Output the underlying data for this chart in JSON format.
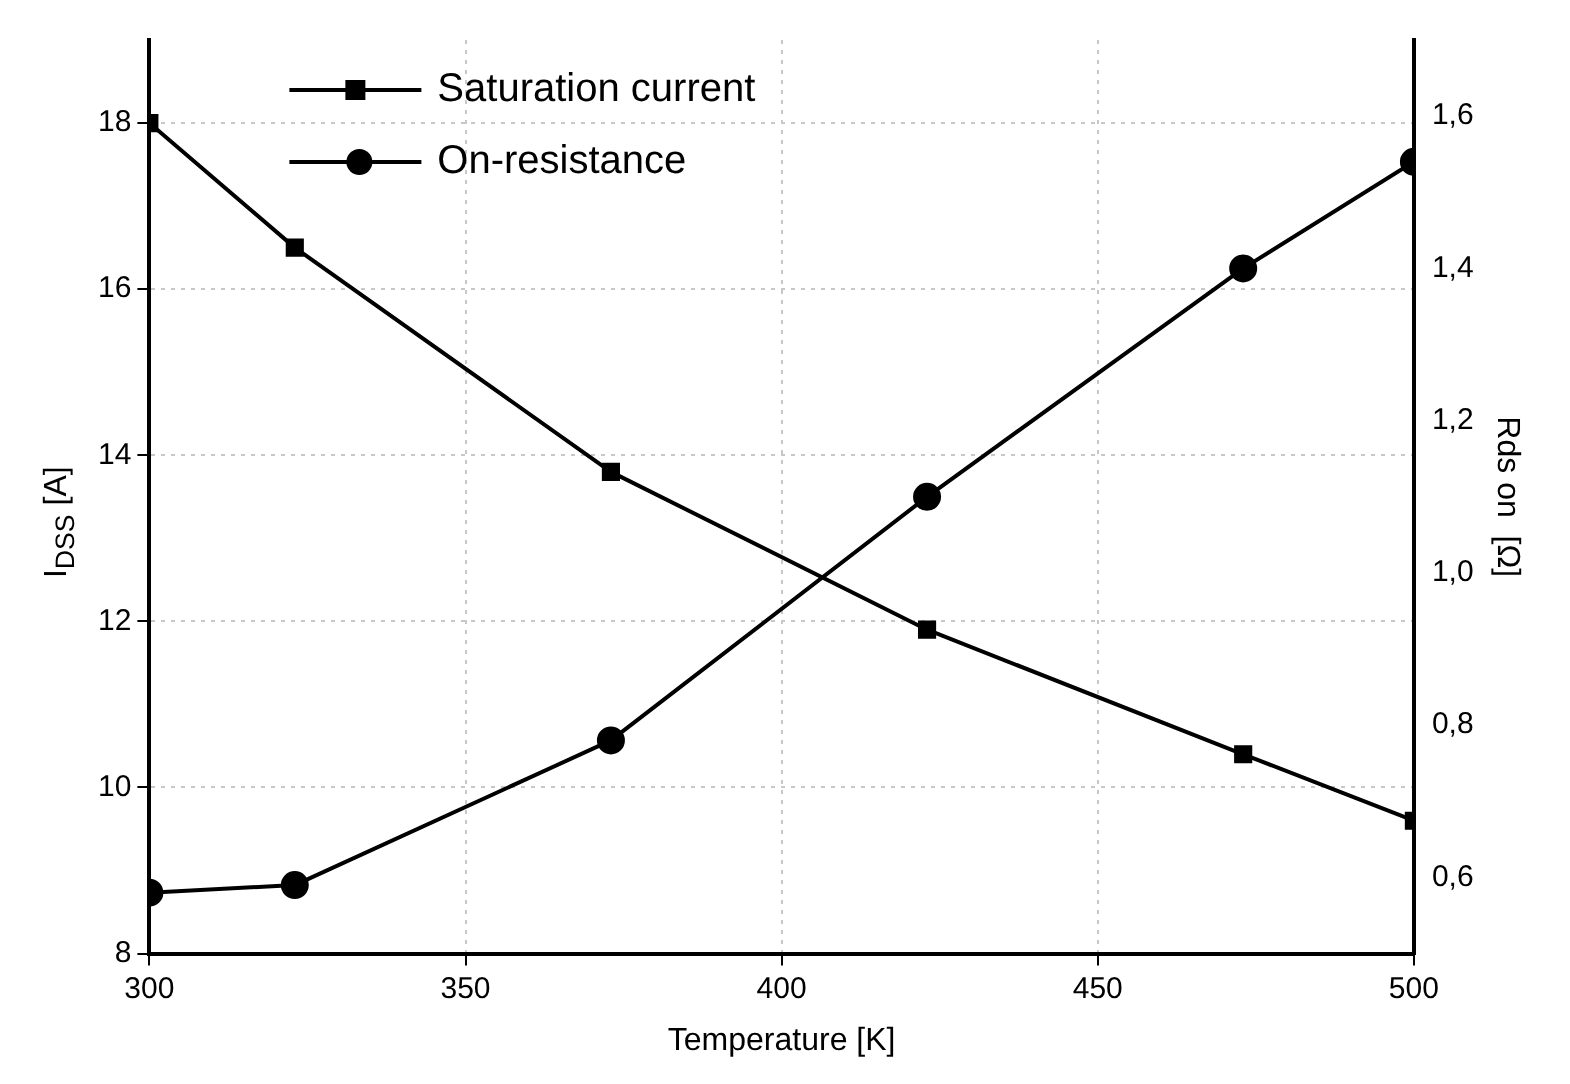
{
  "chart_data": {
    "type": "line",
    "xlabel": "Temperature [K]",
    "ylabel": "I$_{DSS}$ [A]",
    "y2label": "Rds on  [Ω]",
    "xlim": [
      300,
      500
    ],
    "xticks": [
      300,
      350,
      400,
      450,
      500
    ],
    "ylim": [
      8,
      19
    ],
    "yticks": [
      8,
      10,
      12,
      14,
      16,
      18
    ],
    "y2lim": [
      0.5,
      1.7
    ],
    "y2ticks": [
      {
        "value": 0.6,
        "label": "0,6"
      },
      {
        "value": 0.8,
        "label": "0,8"
      },
      {
        "value": 1.0,
        "label": "1,0"
      },
      {
        "value": 1.2,
        "label": "1,2"
      },
      {
        "value": 1.4,
        "label": "1,4"
      },
      {
        "value": 1.6,
        "label": "1,6"
      }
    ],
    "grid": true,
    "legend": "top left",
    "line_style": "solid",
    "series": [
      {
        "name": "Saturation current",
        "color": "#000000",
        "marker": "square",
        "x": [
          300,
          323,
          373,
          423,
          473,
          500
        ],
        "values": [
          18,
          16.5,
          13.8,
          11.9,
          10.4,
          9.6
        ]
      },
      {
        "name": "On-resistance",
        "color": "#000000",
        "marker": "circle",
        "axis": "y2",
        "x": [
          300,
          323,
          373,
          423,
          473,
          500
        ],
        "values": [
          0.58,
          0.59,
          0.78,
          1.1,
          1.4,
          1.54
        ]
      }
    ]
  }
}
